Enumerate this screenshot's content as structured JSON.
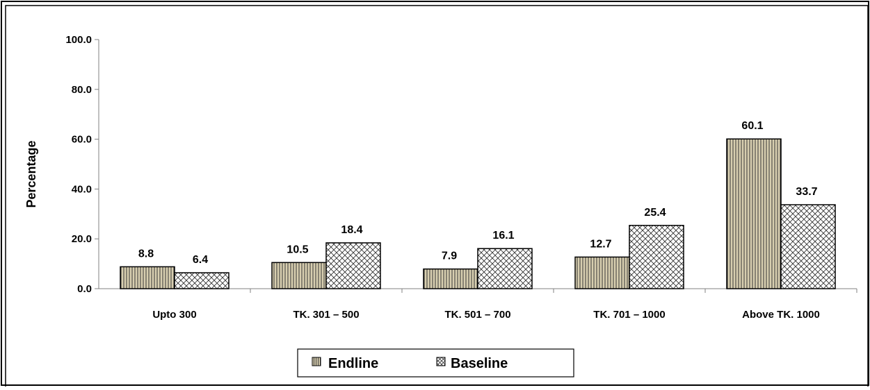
{
  "chart_data": {
    "type": "bar",
    "title": "",
    "xlabel": "",
    "ylabel": "Percentage",
    "ylim": [
      0,
      100
    ],
    "yticks": [
      "0.0",
      "20.0",
      "40.0",
      "60.0",
      "80.0",
      "100.0"
    ],
    "categories": [
      "Upto 300",
      "TK. 301 – 500",
      "TK. 501 – 700",
      "TK. 701 – 1000",
      "Above TK. 1000"
    ],
    "series": [
      {
        "name": "Endline",
        "values": [
          8.8,
          10.5,
          7.9,
          12.7,
          60.1
        ],
        "labels": [
          "8.8",
          "10.5",
          "7.9",
          "12.7",
          "60.1"
        ],
        "fill": "#d8cfb0",
        "pattern": "vertical-lines"
      },
      {
        "name": "Baseline",
        "values": [
          6.4,
          18.4,
          16.1,
          25.4,
          33.7
        ],
        "labels": [
          "6.4",
          "18.4",
          "16.1",
          "25.4",
          "33.7"
        ],
        "fill": "#ffffff",
        "pattern": "crosshatch"
      }
    ],
    "grid": false,
    "legend_position": "bottom"
  }
}
